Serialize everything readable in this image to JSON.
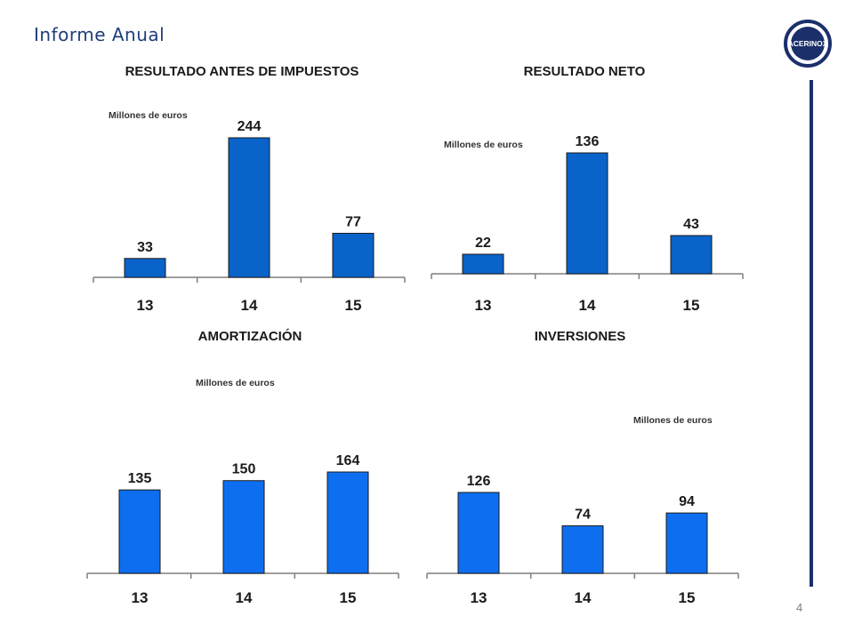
{
  "header": {
    "title": "Informe Anual",
    "logo_text": "ACERINOX"
  },
  "footer": {
    "page_number": "4"
  },
  "colors": {
    "bar_dark": "#0a63c9",
    "bar_light": "#0d6ff0",
    "rule": "#1b2f6b",
    "title": "#1f3d7a"
  },
  "chart_data": [
    {
      "type": "bar",
      "title": "RESULTADO ANTES  DE IMPUESTOS",
      "unit_label": "Millones de euros",
      "categories": [
        "13",
        "14",
        "15"
      ],
      "values": [
        33,
        244,
        77
      ],
      "ylim": [
        0,
        244
      ]
    },
    {
      "type": "bar",
      "title": "RESULTADO NETO",
      "unit_label": "Millones de euros",
      "categories": [
        "13",
        "14",
        "15"
      ],
      "values": [
        22,
        136,
        43
      ],
      "ylim": [
        0,
        136
      ]
    },
    {
      "type": "bar",
      "title": "AMORTIZACIÓN",
      "unit_label": "Millones de euros",
      "categories": [
        "13",
        "14",
        "15"
      ],
      "values": [
        135,
        150,
        164
      ],
      "ylim": [
        0,
        164
      ]
    },
    {
      "type": "bar",
      "title": "INVERSIONES",
      "unit_label": "Millones de euros",
      "categories": [
        "13",
        "14",
        "15"
      ],
      "values": [
        126,
        74,
        94
      ],
      "ylim": [
        0,
        126
      ]
    }
  ]
}
